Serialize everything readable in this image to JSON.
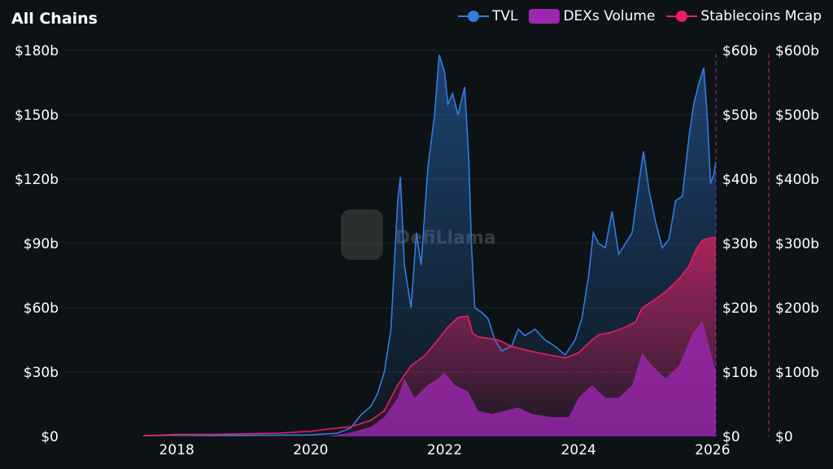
{
  "colors": {
    "tvl": "#2f7de1",
    "dex": "#9c27b0",
    "stable": "#ea1e63",
    "grid": "#1e2528",
    "bg": "#0d1214"
  },
  "watermark": "DefiLlama",
  "chart_data": {
    "type": "line",
    "title": "All Chains",
    "legend": [
      "TVL",
      "DEXs Volume",
      "Stablecoins Mcap"
    ],
    "legend_placement": "top-right",
    "x_ticks": [
      "2018",
      "2020",
      "2022",
      "2024",
      "2026"
    ],
    "xlim": [
      2016.31,
      2026.05
    ],
    "left_axis": {
      "ticks": [
        "$0",
        "$30b",
        "$60b",
        "$90b",
        "$120b",
        "$150b",
        "$180b"
      ],
      "ylim": [
        0,
        180
      ]
    },
    "dex_axis": {
      "ticks": [
        "$0",
        "$10b",
        "$20b",
        "$30b",
        "$40b",
        "$50b",
        "$60b"
      ],
      "ylim": [
        0,
        60
      ]
    },
    "stable_axis": {
      "ticks": [
        "$0",
        "$100b",
        "$200b",
        "$300b",
        "$400b",
        "$500b",
        "$600b"
      ],
      "ylim": [
        0,
        600
      ]
    },
    "series": [
      {
        "name": "TVL",
        "axis": "left",
        "unit": "$b",
        "points": [
          [
            2017.5,
            0.3
          ],
          [
            2018,
            0.6
          ],
          [
            2018.5,
            0.4
          ],
          [
            2019,
            0.5
          ],
          [
            2019.5,
            0.6
          ],
          [
            2020,
            0.7
          ],
          [
            2020.4,
            1.5
          ],
          [
            2020.6,
            4
          ],
          [
            2020.75,
            10
          ],
          [
            2020.9,
            14
          ],
          [
            2021.0,
            20
          ],
          [
            2021.1,
            30
          ],
          [
            2021.2,
            50
          ],
          [
            2021.3,
            110
          ],
          [
            2021.34,
            121
          ],
          [
            2021.4,
            80
          ],
          [
            2021.5,
            60
          ],
          [
            2021.58,
            95
          ],
          [
            2021.65,
            80
          ],
          [
            2021.75,
            125
          ],
          [
            2021.85,
            150
          ],
          [
            2021.92,
            178
          ],
          [
            2022.0,
            170
          ],
          [
            2022.05,
            155
          ],
          [
            2022.12,
            160
          ],
          [
            2022.2,
            150
          ],
          [
            2022.3,
            163
          ],
          [
            2022.36,
            130
          ],
          [
            2022.4,
            90
          ],
          [
            2022.45,
            60
          ],
          [
            2022.55,
            58
          ],
          [
            2022.65,
            55
          ],
          [
            2022.75,
            45
          ],
          [
            2022.85,
            40
          ],
          [
            2023.0,
            42
          ],
          [
            2023.1,
            50
          ],
          [
            2023.2,
            47
          ],
          [
            2023.35,
            50
          ],
          [
            2023.5,
            45
          ],
          [
            2023.65,
            42
          ],
          [
            2023.8,
            38
          ],
          [
            2023.95,
            45
          ],
          [
            2024.05,
            55
          ],
          [
            2024.15,
            75
          ],
          [
            2024.22,
            95
          ],
          [
            2024.3,
            90
          ],
          [
            2024.4,
            88
          ],
          [
            2024.5,
            105
          ],
          [
            2024.6,
            85
          ],
          [
            2024.7,
            90
          ],
          [
            2024.8,
            95
          ],
          [
            2024.9,
            118
          ],
          [
            2024.97,
            133
          ],
          [
            2025.05,
            115
          ],
          [
            2025.15,
            100
          ],
          [
            2025.25,
            88
          ],
          [
            2025.35,
            92
          ],
          [
            2025.45,
            110
          ],
          [
            2025.55,
            112
          ],
          [
            2025.65,
            140
          ],
          [
            2025.72,
            155
          ],
          [
            2025.8,
            165
          ],
          [
            2025.87,
            172
          ],
          [
            2025.93,
            145
          ],
          [
            2025.97,
            118
          ],
          [
            2026.02,
            122
          ],
          [
            2026.05,
            128
          ]
        ]
      },
      {
        "name": "DEXs Volume",
        "axis": "dex",
        "unit": "$b",
        "points": [
          [
            2020.3,
            0.1
          ],
          [
            2020.6,
            0.6
          ],
          [
            2020.9,
            1.5
          ],
          [
            2021.1,
            3
          ],
          [
            2021.3,
            6
          ],
          [
            2021.4,
            9
          ],
          [
            2021.55,
            6
          ],
          [
            2021.75,
            8
          ],
          [
            2021.9,
            9
          ],
          [
            2022.0,
            10
          ],
          [
            2022.15,
            8
          ],
          [
            2022.35,
            7
          ],
          [
            2022.5,
            4
          ],
          [
            2022.7,
            3.5
          ],
          [
            2022.9,
            4
          ],
          [
            2023.1,
            4.5
          ],
          [
            2023.3,
            3.5
          ],
          [
            2023.6,
            3
          ],
          [
            2023.85,
            3
          ],
          [
            2024.0,
            6
          ],
          [
            2024.2,
            8
          ],
          [
            2024.4,
            6
          ],
          [
            2024.6,
            6
          ],
          [
            2024.8,
            8
          ],
          [
            2024.95,
            13
          ],
          [
            2025.1,
            11
          ],
          [
            2025.3,
            9
          ],
          [
            2025.5,
            11
          ],
          [
            2025.7,
            16
          ],
          [
            2025.85,
            18
          ],
          [
            2025.95,
            14
          ],
          [
            2026.05,
            10
          ]
        ]
      },
      {
        "name": "Stablecoins Mcap",
        "axis": "stable",
        "unit": "$b",
        "points": [
          [
            2017.5,
            1
          ],
          [
            2018,
            3
          ],
          [
            2018.5,
            3
          ],
          [
            2019,
            4
          ],
          [
            2019.5,
            5
          ],
          [
            2020,
            8
          ],
          [
            2020.3,
            12
          ],
          [
            2020.6,
            15
          ],
          [
            2020.9,
            25
          ],
          [
            2021.1,
            40
          ],
          [
            2021.3,
            80
          ],
          [
            2021.5,
            110
          ],
          [
            2021.7,
            125
          ],
          [
            2021.9,
            150
          ],
          [
            2022.05,
            170
          ],
          [
            2022.2,
            185
          ],
          [
            2022.35,
            187
          ],
          [
            2022.42,
            160
          ],
          [
            2022.5,
            155
          ],
          [
            2022.8,
            150
          ],
          [
            2023.0,
            140
          ],
          [
            2023.3,
            132
          ],
          [
            2023.6,
            126
          ],
          [
            2023.8,
            122
          ],
          [
            2024.0,
            130
          ],
          [
            2024.2,
            150
          ],
          [
            2024.3,
            158
          ],
          [
            2024.5,
            162
          ],
          [
            2024.7,
            170
          ],
          [
            2024.85,
            178
          ],
          [
            2024.95,
            200
          ],
          [
            2025.1,
            210
          ],
          [
            2025.3,
            225
          ],
          [
            2025.5,
            245
          ],
          [
            2025.65,
            265
          ],
          [
            2025.75,
            290
          ],
          [
            2025.85,
            305
          ],
          [
            2025.95,
            308
          ],
          [
            2026.05,
            310
          ]
        ]
      }
    ]
  }
}
